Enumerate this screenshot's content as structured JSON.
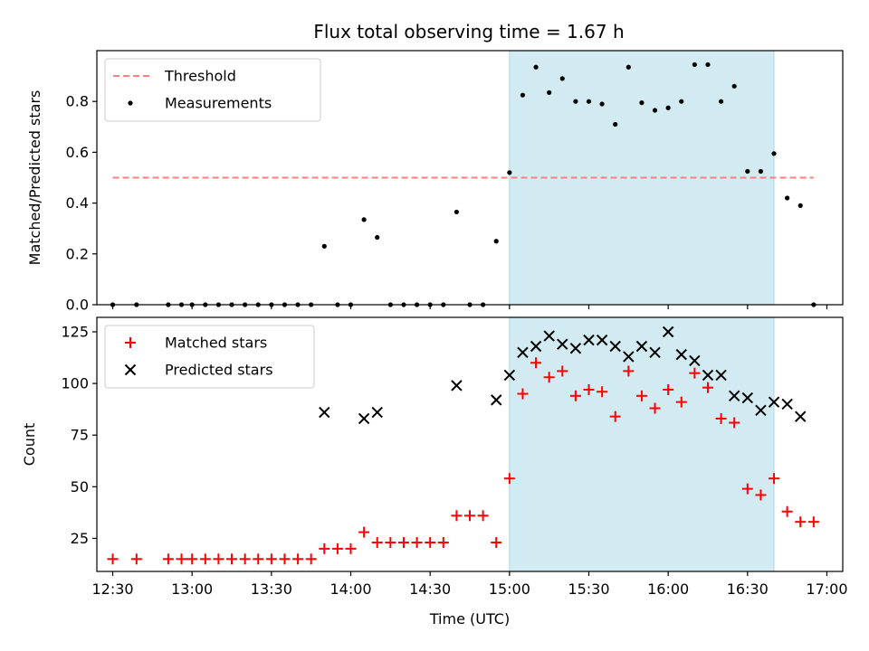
{
  "figure": {
    "title": "Flux total observing time = 1.67 h"
  },
  "chart_data": [
    {
      "type": "scatter",
      "panel": "top",
      "title": "Flux total observing time = 1.67 h",
      "ylabel": "Matched/Predicted stars",
      "xlabel": "",
      "xlim": [
        "12:24",
        "17:06"
      ],
      "ylim": [
        0,
        1.0
      ],
      "yticks": [
        0.0,
        0.2,
        0.4,
        0.6,
        0.8
      ],
      "ytick_labels": [
        "0.0",
        "0.2",
        "0.4",
        "0.6",
        "0.8"
      ],
      "grid": false,
      "legend": "top-left",
      "highlight_span": {
        "start": "15:00",
        "end": "16:40",
        "color": "#add8e6"
      },
      "threshold": {
        "name": "Threshold",
        "value": 0.5,
        "x_start": "12:30",
        "x_end": "16:55",
        "color": "#ff7f7f",
        "style": "dashed"
      },
      "series": [
        {
          "name": "Measurements",
          "marker": "dot",
          "color": "#000000",
          "points": [
            [
              "12:30",
              0.0
            ],
            [
              "12:39",
              0.0
            ],
            [
              "12:51",
              0.0
            ],
            [
              "12:56",
              0.0
            ],
            [
              "13:00",
              0.0
            ],
            [
              "13:05",
              0.0
            ],
            [
              "13:10",
              0.0
            ],
            [
              "13:15",
              0.0
            ],
            [
              "13:20",
              0.0
            ],
            [
              "13:25",
              0.0
            ],
            [
              "13:30",
              0.0
            ],
            [
              "13:35",
              0.0
            ],
            [
              "13:40",
              0.0
            ],
            [
              "13:45",
              0.0
            ],
            [
              "13:50",
              0.23
            ],
            [
              "13:55",
              0.0
            ],
            [
              "14:00",
              0.0
            ],
            [
              "14:05",
              0.335
            ],
            [
              "14:10",
              0.265
            ],
            [
              "14:15",
              0.0
            ],
            [
              "14:20",
              0.0
            ],
            [
              "14:25",
              0.0
            ],
            [
              "14:30",
              0.0
            ],
            [
              "14:35",
              0.0
            ],
            [
              "14:40",
              0.365
            ],
            [
              "14:45",
              0.0
            ],
            [
              "14:50",
              0.0
            ],
            [
              "14:55",
              0.25
            ],
            [
              "15:00",
              0.52
            ],
            [
              "15:05",
              0.825
            ],
            [
              "15:10",
              0.935
            ],
            [
              "15:15",
              0.835
            ],
            [
              "15:20",
              0.89
            ],
            [
              "15:25",
              0.8
            ],
            [
              "15:30",
              0.8
            ],
            [
              "15:35",
              0.79
            ],
            [
              "15:40",
              0.71
            ],
            [
              "15:45",
              0.935
            ],
            [
              "15:50",
              0.795
            ],
            [
              "15:55",
              0.765
            ],
            [
              "16:00",
              0.775
            ],
            [
              "16:05",
              0.8
            ],
            [
              "16:10",
              0.945
            ],
            [
              "16:15",
              0.945
            ],
            [
              "16:20",
              0.8
            ],
            [
              "16:25",
              0.86
            ],
            [
              "16:30",
              0.525
            ],
            [
              "16:35",
              0.525
            ],
            [
              "16:40",
              0.595
            ],
            [
              "16:45",
              0.42
            ],
            [
              "16:50",
              0.39
            ],
            [
              "16:55",
              0.0
            ]
          ]
        }
      ]
    },
    {
      "type": "scatter",
      "panel": "bottom",
      "title": "",
      "ylabel": "Count",
      "xlabel": "Time (UTC)",
      "xlim": [
        "12:24",
        "17:06"
      ],
      "ylim": [
        9,
        132
      ],
      "yticks": [
        25,
        50,
        75,
        100,
        125
      ],
      "ytick_labels": [
        "25",
        "50",
        "75",
        "100",
        "125"
      ],
      "xticks": [
        "12:30",
        "13:00",
        "13:30",
        "14:00",
        "14:30",
        "15:00",
        "15:30",
        "16:00",
        "16:30",
        "17:00"
      ],
      "grid": false,
      "legend": "top-left",
      "highlight_span": {
        "start": "15:00",
        "end": "16:40",
        "color": "#add8e6"
      },
      "series": [
        {
          "name": "Matched stars",
          "marker": "plus",
          "color": "#ff0000",
          "points": [
            [
              "12:30",
              15
            ],
            [
              "12:39",
              15
            ],
            [
              "12:51",
              15
            ],
            [
              "12:56",
              15
            ],
            [
              "13:00",
              15
            ],
            [
              "13:05",
              15
            ],
            [
              "13:10",
              15
            ],
            [
              "13:15",
              15
            ],
            [
              "13:20",
              15
            ],
            [
              "13:25",
              15
            ],
            [
              "13:30",
              15
            ],
            [
              "13:35",
              15
            ],
            [
              "13:40",
              15
            ],
            [
              "13:45",
              15
            ],
            [
              "13:50",
              20
            ],
            [
              "13:55",
              20
            ],
            [
              "14:00",
              20
            ],
            [
              "14:05",
              28
            ],
            [
              "14:10",
              23
            ],
            [
              "14:15",
              23
            ],
            [
              "14:20",
              23
            ],
            [
              "14:25",
              23
            ],
            [
              "14:30",
              23
            ],
            [
              "14:35",
              23
            ],
            [
              "14:40",
              36
            ],
            [
              "14:45",
              36
            ],
            [
              "14:50",
              36
            ],
            [
              "14:55",
              23
            ],
            [
              "15:00",
              54
            ],
            [
              "15:05",
              95
            ],
            [
              "15:10",
              110
            ],
            [
              "15:15",
              103
            ],
            [
              "15:20",
              106
            ],
            [
              "15:25",
              94
            ],
            [
              "15:30",
              97
            ],
            [
              "15:35",
              96
            ],
            [
              "15:40",
              84
            ],
            [
              "15:45",
              106
            ],
            [
              "15:50",
              94
            ],
            [
              "15:55",
              88
            ],
            [
              "16:00",
              97
            ],
            [
              "16:05",
              91
            ],
            [
              "16:10",
              105
            ],
            [
              "16:15",
              98
            ],
            [
              "16:20",
              83
            ],
            [
              "16:25",
              81
            ],
            [
              "16:30",
              49
            ],
            [
              "16:35",
              46
            ],
            [
              "16:40",
              54
            ],
            [
              "16:45",
              38
            ],
            [
              "16:50",
              33
            ],
            [
              "16:55",
              33
            ]
          ]
        },
        {
          "name": "Predicted stars",
          "marker": "x",
          "color": "#000000",
          "points": [
            [
              "13:50",
              86
            ],
            [
              "14:05",
              83
            ],
            [
              "14:10",
              86
            ],
            [
              "14:40",
              99
            ],
            [
              "14:55",
              92
            ],
            [
              "15:00",
              104
            ],
            [
              "15:05",
              115
            ],
            [
              "15:10",
              118
            ],
            [
              "15:15",
              123
            ],
            [
              "15:20",
              119
            ],
            [
              "15:25",
              117
            ],
            [
              "15:30",
              121
            ],
            [
              "15:35",
              121
            ],
            [
              "15:40",
              118
            ],
            [
              "15:45",
              113
            ],
            [
              "15:50",
              118
            ],
            [
              "15:55",
              115
            ],
            [
              "16:00",
              125
            ],
            [
              "16:05",
              114
            ],
            [
              "16:10",
              111
            ],
            [
              "16:15",
              104
            ],
            [
              "16:20",
              104
            ],
            [
              "16:25",
              94
            ],
            [
              "16:30",
              93
            ],
            [
              "16:35",
              87
            ],
            [
              "16:40",
              91
            ],
            [
              "16:45",
              90
            ],
            [
              "16:50",
              84
            ]
          ]
        }
      ]
    }
  ]
}
